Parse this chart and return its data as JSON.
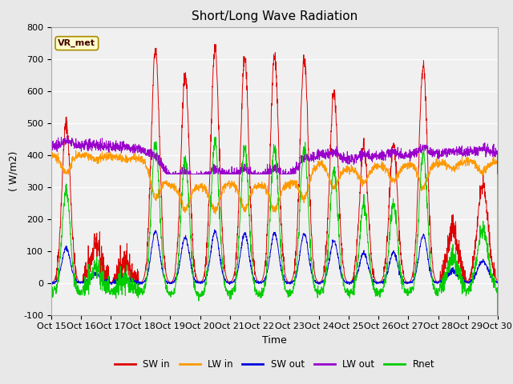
{
  "title": "Short/Long Wave Radiation",
  "xlabel": "Time",
  "ylabel": "( W/m2)",
  "ylim": [
    -100,
    800
  ],
  "x_tick_labels": [
    "Oct 15",
    "Oct 16",
    "Oct 17",
    "Oct 18",
    "Oct 19",
    "Oct 20",
    "Oct 21",
    "Oct 22",
    "Oct 23",
    "Oct 24",
    "Oct 25",
    "Oct 26",
    "Oct 27",
    "Oct 28",
    "Oct 29",
    "Oct 30"
  ],
  "colors": {
    "SW_in": "#dd0000",
    "LW_in": "#ff9900",
    "SW_out": "#0000dd",
    "LW_out": "#9900cc",
    "Rnet": "#00cc00"
  },
  "box_label": "VR_met",
  "fig_bg": "#e8e8e8",
  "plot_bg": "#f0f0f0",
  "grid_color": "#ffffff",
  "title_fontsize": 11,
  "label_fontsize": 9,
  "tick_fontsize": 8
}
